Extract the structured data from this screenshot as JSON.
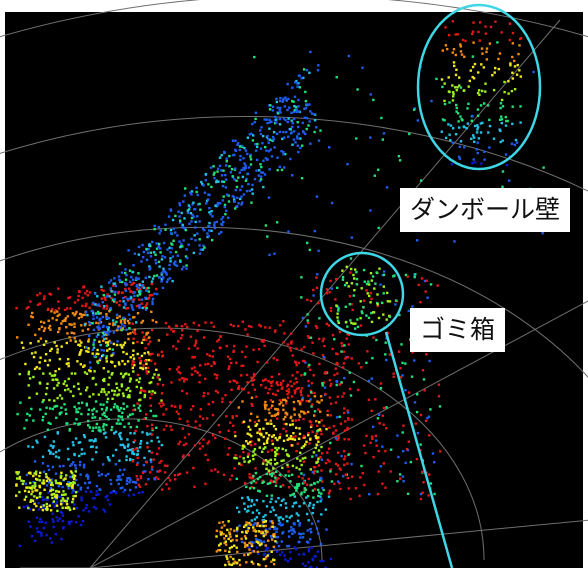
{
  "scene": {
    "description_type": "lidar-point-cloud-visualization",
    "background_color": "#000000",
    "frame_color": "#ffffff",
    "grid_color": "#6e6e6e",
    "highlight_color": "#3fd7e6",
    "point_palette": [
      "#0b1ad6",
      "#1e5cf0",
      "#22c3e6",
      "#22e07a",
      "#a0ef1e",
      "#f1e81c",
      "#f08a12",
      "#e21818"
    ]
  },
  "annotations": {
    "wall_label": "ダンボール壁",
    "trash_label": "ゴミ箱"
  },
  "icons": {
    "highlight_marker": "circle-highlight-icon"
  }
}
